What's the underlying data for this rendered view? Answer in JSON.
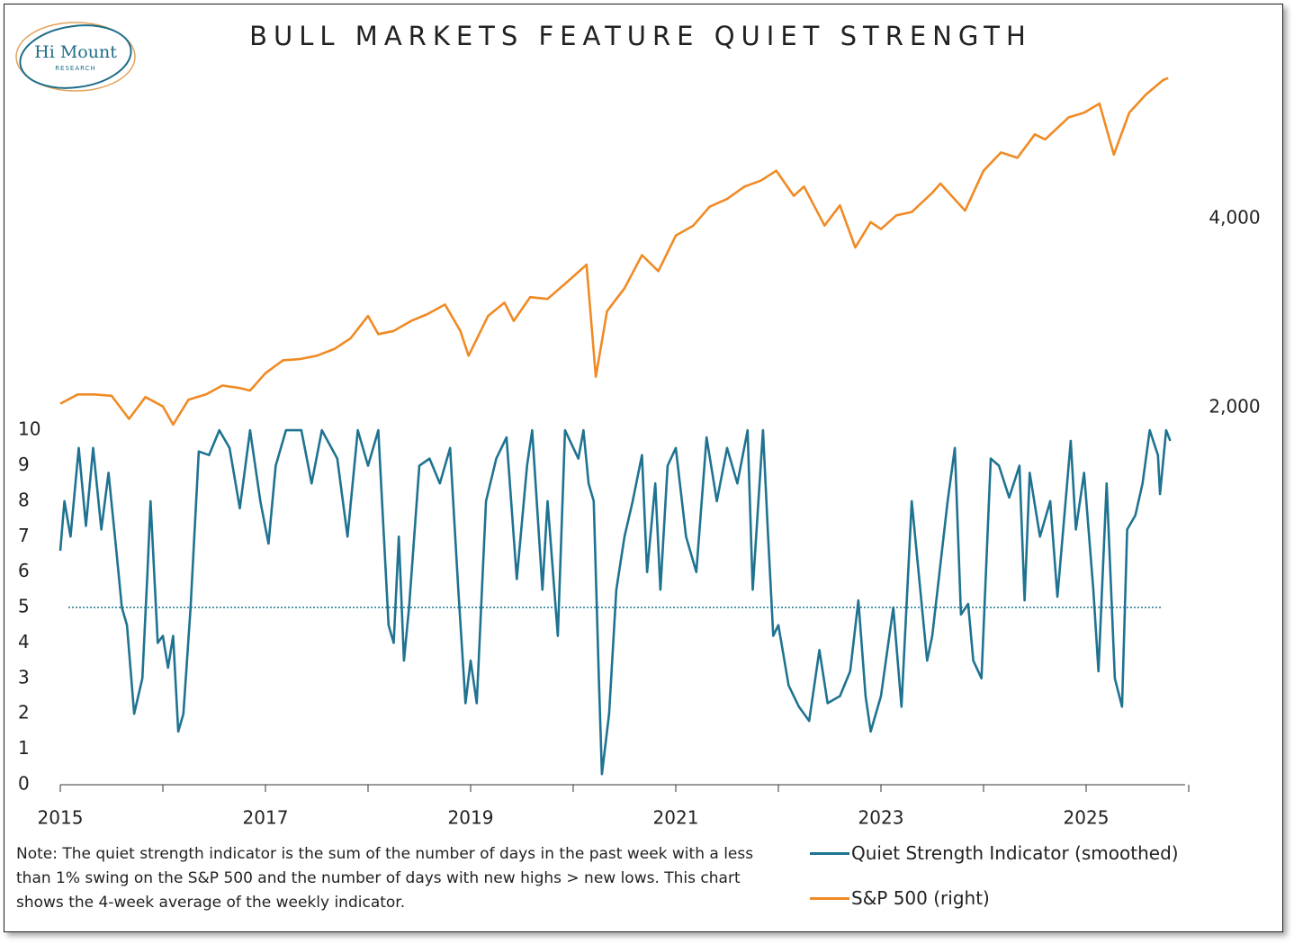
{
  "logo": {
    "name": "Hi Mount",
    "tagline": "RESEARCH"
  },
  "note": "Note: The quiet strength indicator is the sum of the number of days in the past week with a less than 1% swing on the S&P 500 and the number of days with new highs > new lows. This chart shows the 4-week average of the weekly indicator.",
  "chart_data": {
    "type": "line",
    "title": "BULL MARKETS FEATURE QUIET STRENGTH",
    "xlim": [
      2015,
      2026
    ],
    "xticks": [
      2015,
      2017,
      2019,
      2021,
      2023,
      2025
    ],
    "xminor_ticks": [
      2016,
      2018,
      2020,
      2022,
      2024,
      2026
    ],
    "ylim": [
      0,
      20.36
    ],
    "yticks": [
      0,
      1,
      2,
      3,
      4,
      5,
      6,
      7,
      8,
      9,
      10
    ],
    "y2lim": [
      502,
      7080
    ],
    "y2ticks": [
      {
        "value": 2000,
        "label": "2,000"
      },
      {
        "value": 4000,
        "label": "4,000"
      }
    ],
    "y2log": true,
    "reference_line": 5,
    "series": [
      {
        "name": "Quiet Strength Indicator (smoothed)",
        "color": "#1f7391",
        "x": [
          2015.0,
          2015.04,
          2015.1,
          2015.18,
          2015.25,
          2015.32,
          2015.4,
          2015.47,
          2015.55,
          2015.6,
          2015.65,
          2015.72,
          2015.8,
          2015.85,
          2015.88,
          2015.95,
          2016.0,
          2016.05,
          2016.1,
          2016.15,
          2016.2,
          2016.27,
          2016.35,
          2016.45,
          2016.55,
          2016.65,
          2016.75,
          2016.85,
          2016.95,
          2017.03,
          2017.1,
          2017.2,
          2017.35,
          2017.45,
          2017.55,
          2017.7,
          2017.8,
          2017.9,
          2018.0,
          2018.1,
          2018.2,
          2018.25,
          2018.3,
          2018.35,
          2018.4,
          2018.5,
          2018.6,
          2018.7,
          2018.8,
          2018.88,
          2018.95,
          2019.0,
          2019.06,
          2019.15,
          2019.25,
          2019.35,
          2019.45,
          2019.55,
          2019.6,
          2019.7,
          2019.75,
          2019.85,
          2019.92,
          2020.05,
          2020.1,
          2020.15,
          2020.2,
          2020.25,
          2020.28,
          2020.35,
          2020.42,
          2020.5,
          2020.58,
          2020.67,
          2020.72,
          2020.8,
          2020.85,
          2020.92,
          2021.0,
          2021.1,
          2021.2,
          2021.3,
          2021.4,
          2021.5,
          2021.6,
          2021.7,
          2021.75,
          2021.85,
          2021.9,
          2021.95,
          2022.0,
          2022.1,
          2022.2,
          2022.3,
          2022.4,
          2022.48,
          2022.6,
          2022.7,
          2022.78,
          2022.85,
          2022.9,
          2023.0,
          2023.12,
          2023.2,
          2023.3,
          2023.35,
          2023.45,
          2023.5,
          2023.65,
          2023.72,
          2023.78,
          2023.85,
          2023.9,
          2023.98,
          2024.07,
          2024.15,
          2024.25,
          2024.35,
          2024.4,
          2024.45,
          2024.55,
          2024.65,
          2024.72,
          2024.8,
          2024.85,
          2024.9,
          2024.98,
          2025.07,
          2025.12,
          2025.2,
          2025.28,
          2025.35,
          2025.4,
          2025.48,
          2025.55,
          2025.62,
          2025.7,
          2025.72,
          2025.78,
          2025.82
        ],
        "values": [
          6.6,
          8,
          7,
          9.5,
          7.3,
          9.5,
          7.2,
          8.8,
          6.5,
          5,
          4.5,
          2,
          3,
          6,
          8,
          4,
          4.2,
          3.3,
          4.2,
          1.5,
          2,
          5,
          9.4,
          9.3,
          10,
          9.5,
          7.8,
          10,
          8,
          6.8,
          9,
          10,
          10,
          8.5,
          10,
          9.2,
          7,
          10,
          9,
          10,
          4.5,
          4,
          7,
          3.5,
          5,
          9,
          9.2,
          8.5,
          9.5,
          5.5,
          2.3,
          3.5,
          2.3,
          8,
          9.2,
          9.8,
          5.8,
          9,
          10,
          5.5,
          8,
          4.2,
          10,
          9.2,
          10,
          8.5,
          8,
          3,
          0.3,
          2,
          5.5,
          7,
          8,
          9.3,
          6,
          8.5,
          5.5,
          9,
          9.5,
          7,
          6,
          9.8,
          8,
          9.5,
          8.5,
          10,
          5.5,
          10,
          7,
          4.2,
          4.5,
          2.8,
          2.2,
          1.8,
          3.8,
          2.3,
          2.5,
          3.2,
          5.2,
          2.5,
          1.5,
          2.5,
          5,
          2.2,
          8,
          6.5,
          3.5,
          4.2,
          8,
          9.5,
          4.8,
          5.1,
          3.5,
          3,
          9.2,
          9,
          8.1,
          9,
          5.2,
          8.8,
          7,
          8,
          5.3,
          8,
          9.7,
          7.2,
          8.8,
          5.5,
          3.2,
          8.5,
          3,
          2.2,
          7.2,
          7.6,
          8.5,
          10,
          9.3,
          8.2,
          10,
          9.7
        ]
      },
      {
        "name": "S&P 500 (right)",
        "color": "#f08a24",
        "axis": "y2",
        "x": [
          2015.0,
          2015.17,
          2015.33,
          2015.5,
          2015.67,
          2015.83,
          2016.0,
          2016.1,
          2016.25,
          2016.42,
          2016.58,
          2016.75,
          2016.85,
          2017.0,
          2017.17,
          2017.33,
          2017.5,
          2017.67,
          2017.83,
          2018.0,
          2018.1,
          2018.25,
          2018.42,
          2018.58,
          2018.75,
          2018.9,
          2018.98,
          2019.17,
          2019.33,
          2019.42,
          2019.58,
          2019.75,
          2019.92,
          2020.13,
          2020.22,
          2020.33,
          2020.5,
          2020.67,
          2020.83,
          2021.0,
          2021.17,
          2021.33,
          2021.5,
          2021.67,
          2021.83,
          2021.98,
          2022.15,
          2022.25,
          2022.45,
          2022.6,
          2022.75,
          2022.9,
          2023.0,
          2023.15,
          2023.3,
          2023.5,
          2023.58,
          2023.82,
          2024.0,
          2024.17,
          2024.33,
          2024.5,
          2024.6,
          2024.83,
          2024.98,
          2025.13,
          2025.27,
          2025.42,
          2025.58,
          2025.75,
          2025.8
        ],
        "values": [
          2030,
          2100,
          2100,
          2090,
          1920,
          2080,
          2010,
          1880,
          2060,
          2100,
          2170,
          2150,
          2130,
          2270,
          2380,
          2390,
          2420,
          2480,
          2580,
          2800,
          2620,
          2650,
          2750,
          2820,
          2920,
          2650,
          2420,
          2800,
          2940,
          2750,
          3000,
          2980,
          3150,
          3380,
          2240,
          2850,
          3100,
          3500,
          3300,
          3760,
          3900,
          4180,
          4300,
          4500,
          4600,
          4770,
          4350,
          4500,
          3900,
          4200,
          3600,
          3950,
          3850,
          4050,
          4100,
          4400,
          4550,
          4120,
          4770,
          5100,
          5000,
          5450,
          5350,
          5800,
          5900,
          6100,
          5060,
          5900,
          6300,
          6650,
          6700
        ]
      }
    ]
  }
}
